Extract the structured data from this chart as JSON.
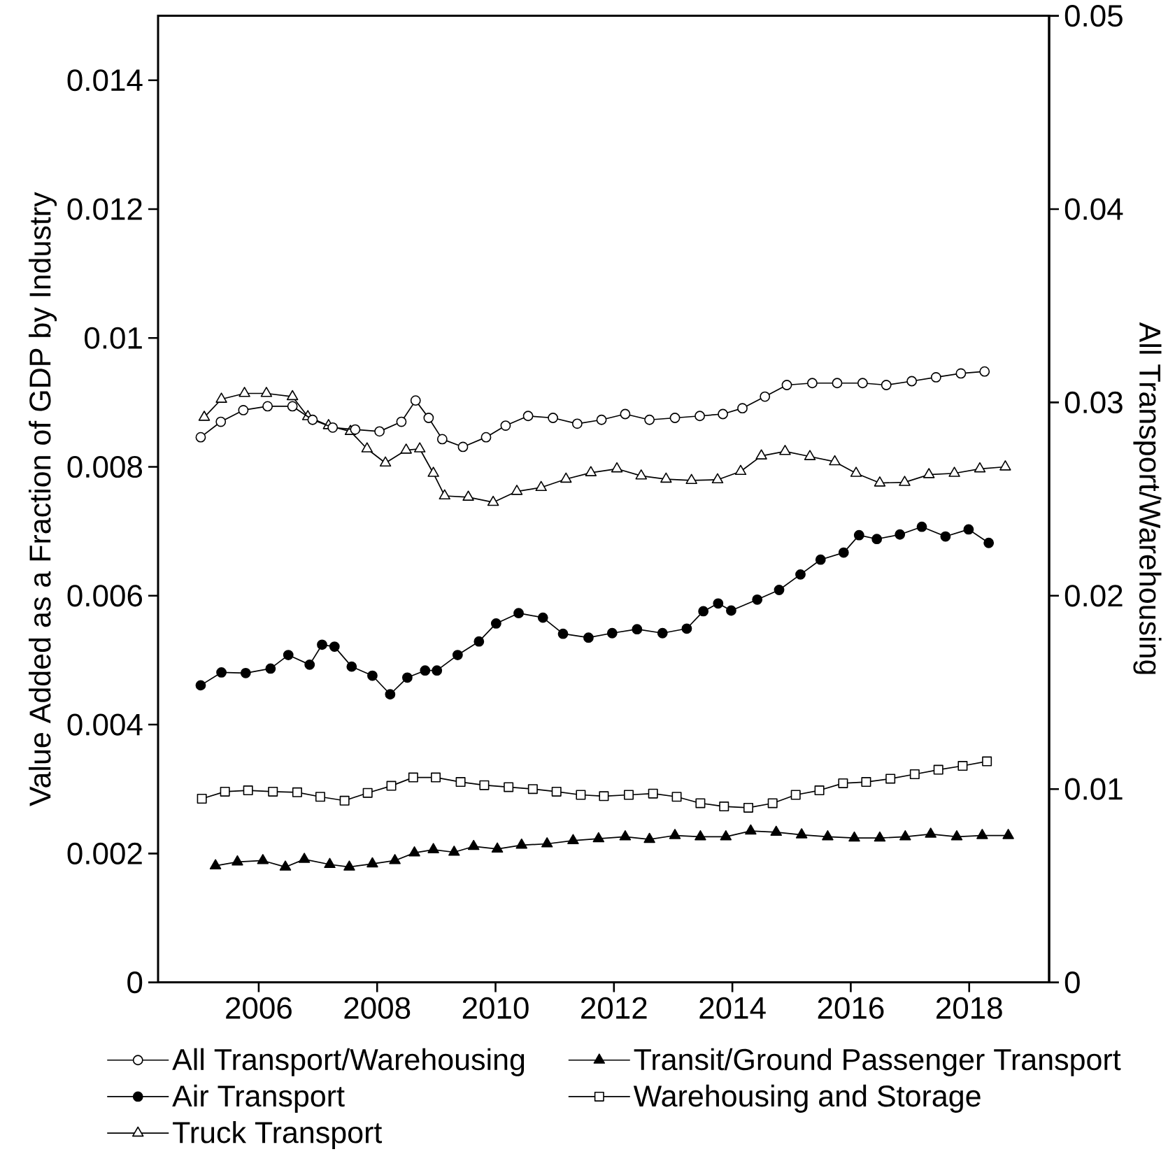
{
  "chart_data": {
    "type": "line",
    "ylabel": "Value Added as a Fraction of GDP by Industry",
    "y2label": "All Transport/Warehousing",
    "xlim": [
      2004.3,
      2019.35
    ],
    "xticks": [
      2006,
      2008,
      2010,
      2012,
      2014,
      2016,
      2018
    ],
    "ylim": [
      0,
      0.015
    ],
    "yticks": [
      0,
      0.002,
      0.004,
      0.006,
      0.008,
      0.01,
      0.012,
      0.014
    ],
    "y2lim": [
      0,
      0.05
    ],
    "y2ticks": [
      0,
      0.01,
      0.02,
      0.03,
      0.04,
      0.05
    ],
    "legend": "bottom",
    "line_style": "solid",
    "series": [
      {
        "name": "All Transport/Warehousing",
        "color": "#000000",
        "marker": "circle",
        "axis": "y2",
        "x": [
          2005.02,
          2005.36,
          2005.74,
          2006.15,
          2006.57,
          2006.91,
          2007.25,
          2007.63,
          2008.04,
          2008.41,
          2008.65,
          2008.87,
          2009.1,
          2009.45,
          2009.84,
          2010.17,
          2010.55,
          2010.97,
          2011.38,
          2011.79,
          2012.19,
          2012.6,
          2013.03,
          2013.45,
          2013.84,
          2014.17,
          2014.55,
          2014.92,
          2015.35,
          2015.77,
          2016.2,
          2016.6,
          2017.03,
          2017.44,
          2017.86,
          2018.26
        ],
        "values": [
          0.0282,
          0.029,
          0.0296,
          0.0298,
          0.0298,
          0.0291,
          0.0287,
          0.0286,
          0.0285,
          0.029,
          0.0301,
          0.0292,
          0.0281,
          0.0277,
          0.0282,
          0.0288,
          0.0293,
          0.0292,
          0.0289,
          0.0291,
          0.0294,
          0.0291,
          0.0292,
          0.0293,
          0.0294,
          0.0297,
          0.0303,
          0.0309,
          0.031,
          0.031,
          0.031,
          0.0309,
          0.0311,
          0.0313,
          0.0315,
          0.0316
        ]
      },
      {
        "name": "Air Transport",
        "color": "#000000",
        "marker": "circle",
        "x": [
          2005.02,
          2005.37,
          2005.78,
          2006.2,
          2006.5,
          2006.86,
          2007.07,
          2007.28,
          2007.57,
          2007.92,
          2008.22,
          2008.51,
          2008.81,
          2009.01,
          2009.36,
          2009.72,
          2010.01,
          2010.39,
          2010.8,
          2011.14,
          2011.57,
          2011.97,
          2012.39,
          2012.82,
          2013.23,
          2013.51,
          2013.76,
          2013.98,
          2014.42,
          2014.79,
          2015.15,
          2015.49,
          2015.88,
          2016.14,
          2016.44,
          2016.83,
          2017.2,
          2017.6,
          2017.99,
          2018.33
        ],
        "values": [
          0.00461,
          0.00481,
          0.0048,
          0.00487,
          0.00508,
          0.00493,
          0.00524,
          0.00521,
          0.0049,
          0.00476,
          0.00447,
          0.00473,
          0.00484,
          0.00484,
          0.00508,
          0.00529,
          0.00557,
          0.00573,
          0.00566,
          0.00541,
          0.00535,
          0.00542,
          0.00548,
          0.00542,
          0.00549,
          0.00576,
          0.00588,
          0.00577,
          0.00594,
          0.00609,
          0.00633,
          0.00656,
          0.00667,
          0.00694,
          0.00688,
          0.00695,
          0.00707,
          0.00692,
          0.00703,
          0.00682
        ]
      },
      {
        "name": "Truck Transport",
        "color": "#000000",
        "marker": "triangle",
        "x": [
          2005.08,
          2005.37,
          2005.76,
          2006.13,
          2006.57,
          2006.83,
          2007.18,
          2007.55,
          2007.83,
          2008.14,
          2008.49,
          2008.72,
          2008.95,
          2009.14,
          2009.54,
          2009.96,
          2010.36,
          2010.77,
          2011.19,
          2011.61,
          2012.05,
          2012.46,
          2012.88,
          2013.31,
          2013.75,
          2014.14,
          2014.49,
          2014.89,
          2015.31,
          2015.73,
          2016.09,
          2016.49,
          2016.91,
          2017.32,
          2017.75,
          2018.18,
          2018.61
        ],
        "values": [
          0.00877,
          0.00905,
          0.00914,
          0.00914,
          0.00909,
          0.00878,
          0.00864,
          0.00855,
          0.00828,
          0.00806,
          0.00826,
          0.00828,
          0.0079,
          0.00755,
          0.00753,
          0.00745,
          0.00762,
          0.00768,
          0.00781,
          0.00791,
          0.00797,
          0.00786,
          0.00781,
          0.00779,
          0.0078,
          0.00793,
          0.00817,
          0.00824,
          0.00816,
          0.00808,
          0.0079,
          0.00775,
          0.00776,
          0.00788,
          0.0079,
          0.00797,
          0.008
        ]
      },
      {
        "name": "Transit/Ground Passenger Transport",
        "color": "#000000",
        "marker": "triangle",
        "x": [
          2005.27,
          2005.64,
          2006.07,
          2006.45,
          2006.77,
          2007.2,
          2007.53,
          2007.92,
          2008.3,
          2008.63,
          2008.95,
          2009.3,
          2009.63,
          2010.03,
          2010.44,
          2010.87,
          2011.31,
          2011.74,
          2012.19,
          2012.6,
          2013.03,
          2013.46,
          2013.89,
          2014.31,
          2014.74,
          2015.17,
          2015.61,
          2016.06,
          2016.49,
          2016.92,
          2017.35,
          2017.79,
          2018.22,
          2018.66
        ],
        "values": [
          0.00181,
          0.00187,
          0.00189,
          0.00179,
          0.00191,
          0.00183,
          0.00179,
          0.00184,
          0.00189,
          0.00201,
          0.00206,
          0.00202,
          0.00211,
          0.00207,
          0.00213,
          0.00215,
          0.0022,
          0.00223,
          0.00226,
          0.00222,
          0.00228,
          0.00226,
          0.00226,
          0.00235,
          0.00233,
          0.00229,
          0.00226,
          0.00224,
          0.00224,
          0.00226,
          0.0023,
          0.00226,
          0.00228,
          0.00228
        ]
      },
      {
        "name": "Warehousing and Storage",
        "color": "#000000",
        "marker": "square",
        "x": [
          2005.04,
          2005.43,
          2005.82,
          2006.24,
          2006.65,
          2007.04,
          2007.45,
          2007.84,
          2008.24,
          2008.61,
          2008.99,
          2009.41,
          2009.81,
          2010.22,
          2010.63,
          2011.03,
          2011.44,
          2011.83,
          2012.25,
          2012.66,
          2013.06,
          2013.46,
          2013.86,
          2014.27,
          2014.68,
          2015.07,
          2015.47,
          2015.87,
          2016.26,
          2016.67,
          2017.08,
          2017.48,
          2017.89,
          2018.3
        ],
        "values": [
          0.00285,
          0.00296,
          0.00298,
          0.00296,
          0.00295,
          0.00288,
          0.00282,
          0.00294,
          0.00305,
          0.00318,
          0.00318,
          0.00311,
          0.00306,
          0.00303,
          0.003,
          0.00296,
          0.00291,
          0.00289,
          0.00291,
          0.00293,
          0.00288,
          0.00278,
          0.00273,
          0.00271,
          0.00278,
          0.00291,
          0.00298,
          0.00309,
          0.00311,
          0.00316,
          0.00323,
          0.0033,
          0.00336,
          0.00343
        ]
      }
    ]
  }
}
